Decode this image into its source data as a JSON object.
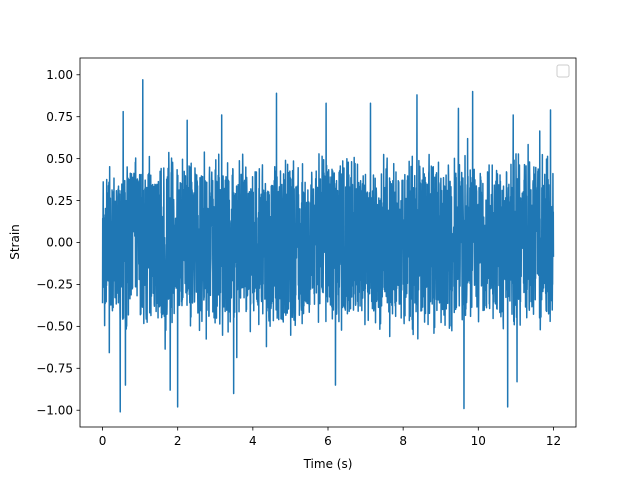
{
  "chart_data": {
    "type": "line",
    "title": "",
    "xlabel": "Time (s)",
    "ylabel": "Strain",
    "xlim": [
      -0.6,
      12.6
    ],
    "ylim": [
      -1.1,
      1.1
    ],
    "xticks": [
      0,
      2,
      4,
      6,
      8,
      10,
      12
    ],
    "xtick_labels": [
      "0",
      "2",
      "4",
      "6",
      "8",
      "10",
      "12"
    ],
    "yticks": [
      -1.0,
      -0.75,
      -0.5,
      -0.25,
      0.0,
      0.25,
      0.5,
      0.75,
      1.0
    ],
    "ytick_labels": [
      "−1.00",
      "−0.75",
      "−0.50",
      "−0.25",
      "0.00",
      "0.25",
      "0.50",
      "0.75",
      "1.00"
    ],
    "grid": false,
    "legend": {
      "placement": "top-right",
      "entries": []
    },
    "series": [
      {
        "color": "#1f77b4",
        "x_range": [
          0,
          12
        ],
        "envelope_upper": 0.5,
        "envelope_lower": -0.5,
        "max": 0.97,
        "min": -1.01,
        "peaks": [
          {
            "x": 1.07,
            "y": 0.97
          },
          {
            "x": 9.85,
            "y": 0.9
          },
          {
            "x": 4.63,
            "y": 0.89
          },
          {
            "x": 8.37,
            "y": 0.88
          },
          {
            "x": 5.95,
            "y": 0.83
          },
          {
            "x": 7.13,
            "y": 0.83
          },
          {
            "x": 9.47,
            "y": 0.8
          },
          {
            "x": 11.92,
            "y": 0.79
          },
          {
            "x": 0.55,
            "y": 0.78
          },
          {
            "x": 3.17,
            "y": 0.76
          },
          {
            "x": 10.93,
            "y": 0.76
          },
          {
            "x": 0.47,
            "y": -1.01
          },
          {
            "x": 9.62,
            "y": -0.99
          },
          {
            "x": 2.0,
            "y": -0.98
          },
          {
            "x": 10.78,
            "y": -0.98
          },
          {
            "x": 3.49,
            "y": -0.9
          },
          {
            "x": 1.8,
            "y": -0.88
          },
          {
            "x": 0.61,
            "y": -0.85
          },
          {
            "x": 6.2,
            "y": -0.85
          },
          {
            "x": 11.03,
            "y": -0.83
          }
        ]
      }
    ]
  }
}
